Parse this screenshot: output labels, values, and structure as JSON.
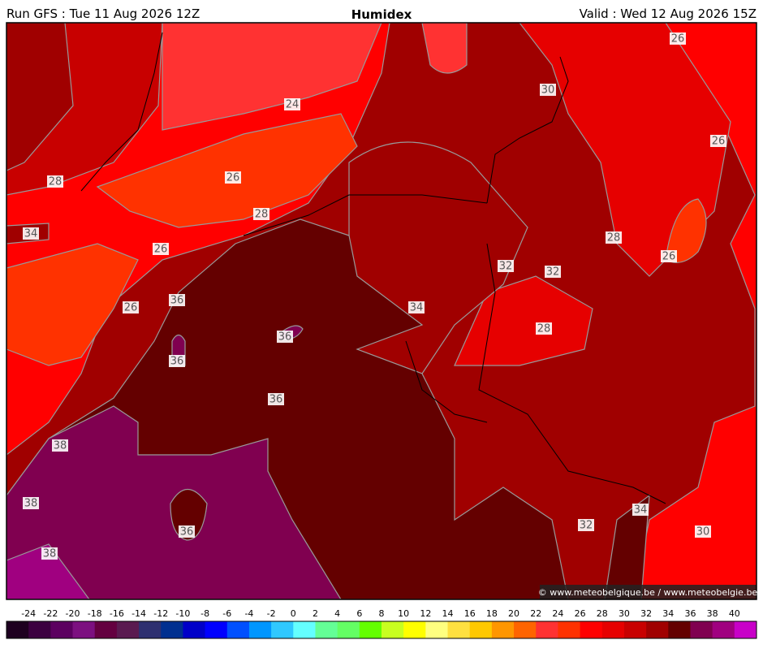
{
  "header": {
    "run": "Run GFS : Tue 11 Aug 2026 12Z",
    "title": "Humidex",
    "valid": "Valid : Wed 12 Aug 2026 15Z"
  },
  "map": {
    "contour_labels": [
      26,
      30,
      26,
      24,
      26,
      28,
      28,
      34,
      26,
      28,
      26,
      32,
      32,
      34,
      36,
      26,
      36,
      28,
      36,
      36,
      38,
      38,
      34,
      32,
      36,
      30,
      38
    ]
  },
  "footer": {
    "copyright": "© www.meteobelgique.be / www.meteobelgie.be"
  },
  "legend": {
    "labels": [
      -24,
      -22,
      -20,
      -18,
      -16,
      -14,
      -12,
      -10,
      -8,
      -6,
      -4,
      -2,
      0,
      2,
      4,
      6,
      8,
      10,
      12,
      14,
      16,
      18,
      20,
      22,
      24,
      26,
      28,
      30,
      32,
      34,
      36,
      38,
      40
    ],
    "colors": [
      "#1e0020",
      "#3c0040",
      "#5c0060",
      "#7c1080",
      "#640040",
      "#5a1a50",
      "#2e3070",
      "#003090",
      "#0000c8",
      "#0000ff",
      "#0050ff",
      "#0096ff",
      "#30c8ff",
      "#64ffff",
      "#64ff96",
      "#64ff64",
      "#64ff00",
      "#c8ff20",
      "#ffff00",
      "#ffff80",
      "#ffe040",
      "#ffc800",
      "#ff9600",
      "#ff6400",
      "#ff3232",
      "#ff3200",
      "#ff0000",
      "#e60000",
      "#c80000",
      "#a00000",
      "#640000",
      "#800050",
      "#a00080",
      "#c800c8"
    ]
  }
}
